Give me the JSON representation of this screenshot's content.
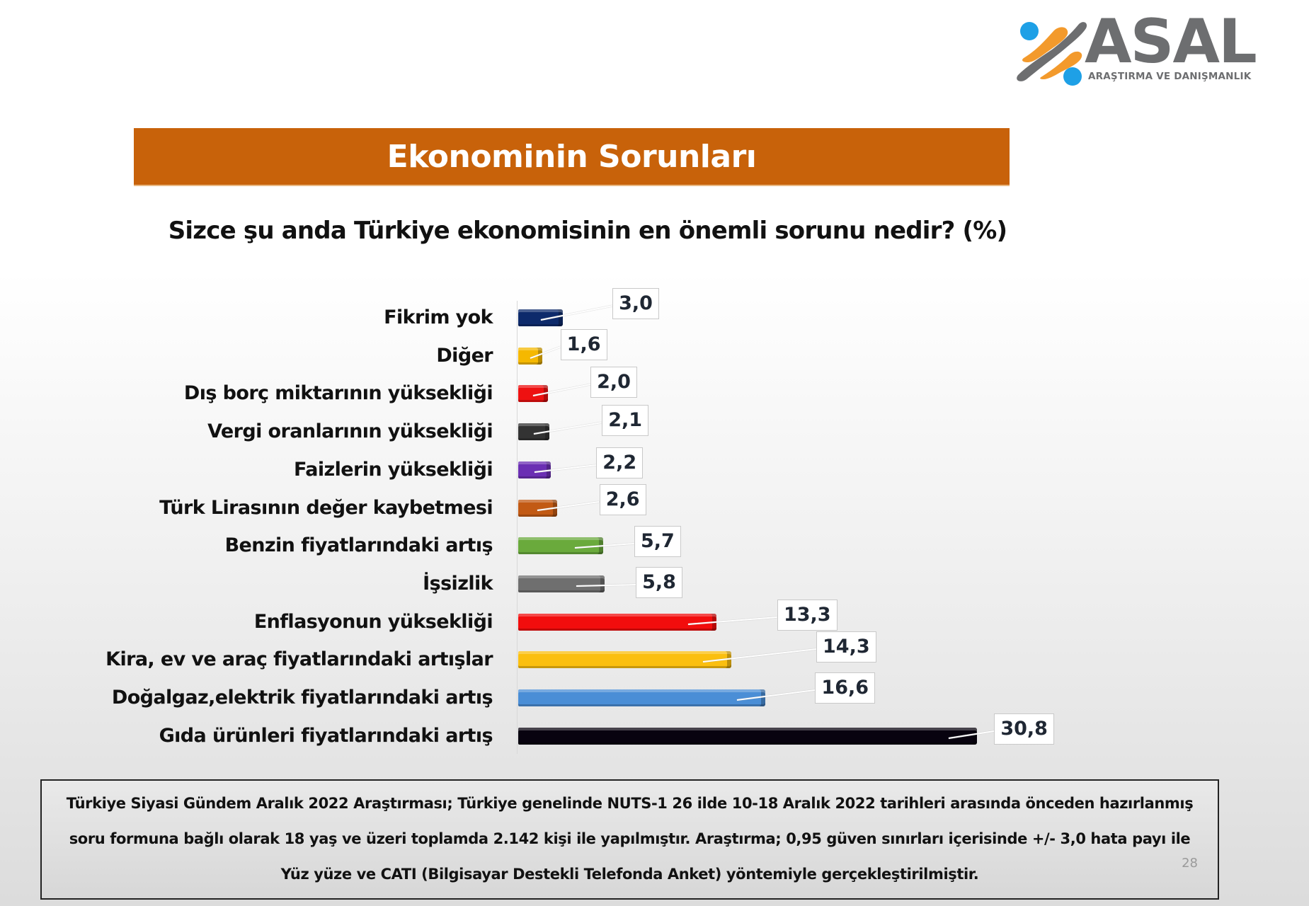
{
  "logo": {
    "word": "ASAL",
    "subtitle": "ARAŞTIRMA VE DANIŞMANLIK",
    "colors": {
      "orange": "#f39a2c",
      "gray": "#6d6e70",
      "blue": "#1ea0e6"
    }
  },
  "header": {
    "title": "Ekonominin Sorunları",
    "title_bg": "#c8620a",
    "subtitle": "Sizce şu anda Türkiye ekonomisinin en önemli sorunu nedir? (%)"
  },
  "chart_data": {
    "type": "bar",
    "orientation": "horizontal",
    "title": "Ekonominin Sorunları",
    "subtitle": "Sizce şu anda Türkiye ekonomisinin en önemli sorunu nedir? (%)",
    "xlabel": "",
    "ylabel": "",
    "unit": "%",
    "grid": false,
    "legend": null,
    "categories": [
      "Fikrim yok",
      "Diğer",
      "Dış borç miktarının yüksekliği",
      "Vergi oranlarının yüksekliği",
      "Faizlerin yüksekliği",
      "Türk Lirasının değer kaybetmesi",
      "Benzin fiyatlarındaki artış",
      "İşsizlik",
      "Enflasyonun yüksekliği",
      "Kira, ev ve araç fiyatlarındaki artışlar",
      "Doğalgaz,elektrik fiyatlarındaki artış",
      "Gıda ürünleri fiyatlarındaki artış"
    ],
    "values": [
      3.0,
      1.6,
      2.0,
      2.1,
      2.2,
      2.6,
      5.7,
      5.8,
      13.3,
      14.3,
      16.6,
      30.8
    ],
    "value_labels": [
      "3,0",
      "1,6",
      "2,0",
      "2,1",
      "2,2",
      "2,6",
      "5,7",
      "5,8",
      "13,3",
      "14,3",
      "16,6",
      "30,8"
    ],
    "colors": [
      "#0d2a6b",
      "#f5b800",
      "#ee1111",
      "#333333",
      "#6b2fb3",
      "#c25a14",
      "#6aaa3c",
      "#6f6f6f",
      "#f20d0d",
      "#fbbf0f",
      "#4a8ed6",
      "#08030f"
    ],
    "xlim": [
      0,
      31
    ]
  },
  "footer": {
    "lines": [
      "Türkiye Siyasi Gündem Aralık 2022 Araştırması; Türkiye genelinde NUTS-1 26 ilde 10-18 Aralık 2022 tarihleri arasında önceden hazırlanmış",
      "soru formuna bağlı olarak 18 yaş ve üzeri toplamda 2.142 kişi ile yapılmıştır. Araştırma; 0,95 güven sınırları içerisinde +/- 3,0 hata payı ile",
      "Yüz yüze ve CATI (Bilgisayar Destekli Telefonda Anket) yöntemiyle gerçekleştirilmiştir."
    ],
    "page_number": "28"
  }
}
